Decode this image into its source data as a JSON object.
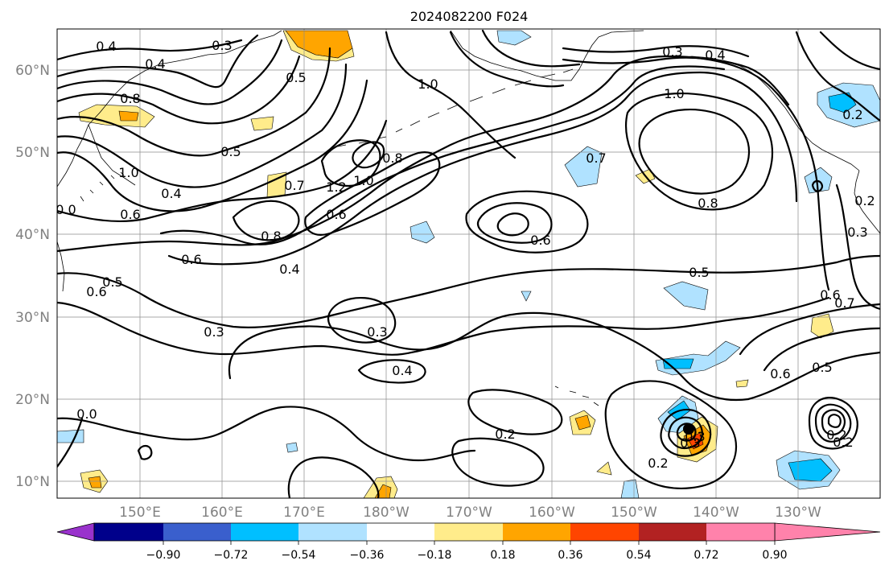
{
  "title": "2024082200 F024",
  "lat_labels": [
    "60°N",
    "50°N",
    "40°N",
    "30°N",
    "20°N",
    "10°N"
  ],
  "lon_labels": [
    "150°E",
    "160°E",
    "170°E",
    "180°W",
    "170°W",
    "160°W",
    "150°W",
    "140°W",
    "130°W"
  ],
  "colorbar": {
    "ticks": [
      "−0.90",
      "−0.72",
      "−0.54",
      "−0.36",
      "−0.18",
      "0.18",
      "0.36",
      "0.54",
      "0.72",
      "0.90"
    ],
    "colors": [
      "#9932cc",
      "#00008b",
      "#3a5fcd",
      "#00bfff",
      "#b0e2ff",
      "#ffffff",
      "#ffec8b",
      "#ffa500",
      "#ff4500",
      "#b22222",
      "#ff82ab"
    ]
  },
  "contour_labels": [
    {
      "text": "0.4"
    },
    {
      "text": "0.3"
    },
    {
      "text": "0.4"
    },
    {
      "text": "0.5"
    },
    {
      "text": "0.8"
    },
    {
      "text": "1.0"
    },
    {
      "text": "0.3"
    },
    {
      "text": "0.4"
    },
    {
      "text": "1.0"
    },
    {
      "text": "0.5"
    },
    {
      "text": "0.4"
    },
    {
      "text": "0.7"
    },
    {
      "text": "1.2"
    },
    {
      "text": "1.0"
    },
    {
      "text": "0.8"
    },
    {
      "text": "0.6"
    },
    {
      "text": "0.8"
    },
    {
      "text": "0.6"
    },
    {
      "text": "0.4"
    },
    {
      "text": "0.6"
    },
    {
      "text": "0.5"
    },
    {
      "text": "0.6"
    },
    {
      "text": "0.5"
    },
    {
      "text": "0.3"
    },
    {
      "text": "0.3"
    },
    {
      "text": "0.4"
    },
    {
      "text": "0.2"
    },
    {
      "text": "0.2"
    },
    {
      "text": "0.6"
    },
    {
      "text": "0.5"
    },
    {
      "text": "0.7"
    },
    {
      "text": "0.8"
    },
    {
      "text": "0.2"
    },
    {
      "text": "0.3"
    },
    {
      "text": "0.6"
    },
    {
      "text": "0.7"
    },
    {
      "text": "0.3"
    },
    {
      "text": "0.2"
    },
    {
      "text": "0.2"
    },
    {
      "text": "0.6"
    },
    {
      "text": "1.0"
    },
    {
      "text": "0.0"
    },
    {
      "text": "0.0"
    },
    {
      "text": "0.2"
    },
    {
      "text": "0.3"
    }
  ]
}
